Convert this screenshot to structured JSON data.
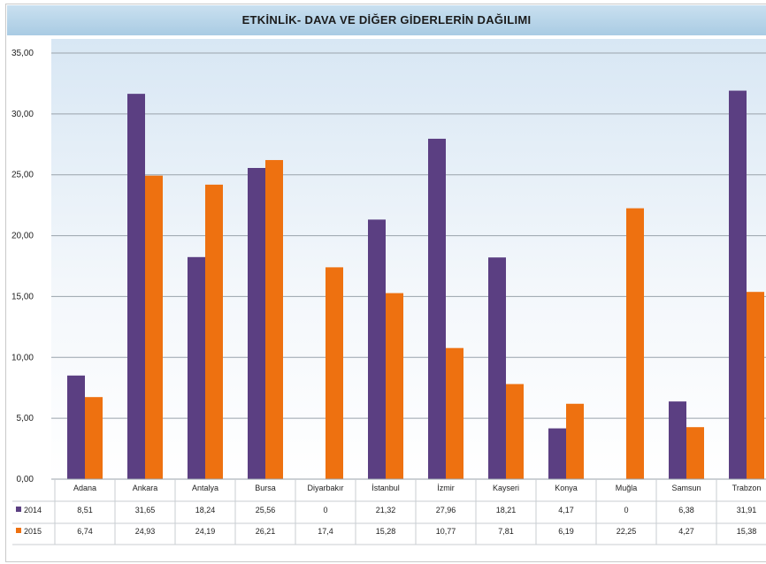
{
  "chart_data": {
    "type": "bar",
    "title": "ETKİNLİK- DAVA VE DİĞER GİDERLERİN DAĞILIMI",
    "categories": [
      "Adana",
      "Ankara",
      "Antalya",
      "Bursa",
      "Diyarbakır",
      "İstanbul",
      "İzmir",
      "Kayseri",
      "Konya",
      "Muğla",
      "Samsun",
      "Trabzon"
    ],
    "series": [
      {
        "name": "2014",
        "color": "#5b3f82",
        "values": [
          8.51,
          31.65,
          18.24,
          25.56,
          0,
          21.32,
          27.96,
          18.21,
          4.17,
          0,
          6.38,
          31.91
        ],
        "labels": [
          "8,51",
          "31,65",
          "18,24",
          "25,56",
          "0",
          "21,32",
          "27,96",
          "18,21",
          "4,17",
          "0",
          "6,38",
          "31,91"
        ]
      },
      {
        "name": "2015",
        "color": "#ee7110",
        "values": [
          6.74,
          24.93,
          24.19,
          26.21,
          17.4,
          15.28,
          10.77,
          7.81,
          6.19,
          22.25,
          4.27,
          15.38
        ],
        "labels": [
          "6,74",
          "24,93",
          "24,19",
          "26,21",
          "17,4",
          "15,28",
          "10,77",
          "7,81",
          "6,19",
          "22,25",
          "4,27",
          "15,38"
        ]
      }
    ],
    "y_ticks": [
      "0,00",
      "5,00",
      "10,00",
      "15,00",
      "20,00",
      "25,00",
      "30,00",
      "35,00"
    ],
    "ylim": [
      0,
      35
    ],
    "grid": true,
    "legend": "data-table"
  }
}
